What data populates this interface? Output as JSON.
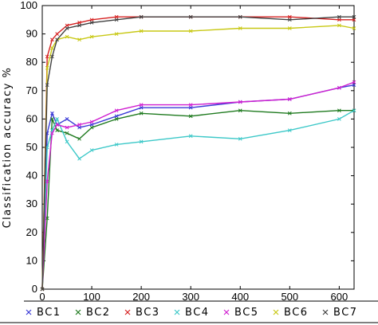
{
  "chart_data": {
    "type": "line",
    "title": "",
    "xlabel": "",
    "ylabel": "Classification accuracy %",
    "xlim": [
      0,
      630
    ],
    "ylim": [
      0,
      100
    ],
    "xticks": [
      0,
      100,
      200,
      300,
      400,
      500,
      600
    ],
    "yticks": [
      0,
      10,
      20,
      30,
      40,
      50,
      60,
      70,
      80,
      90,
      100
    ],
    "grid": false,
    "legend_position": "bottom",
    "series": [
      {
        "name": "BC1",
        "color": "#3b3bd6",
        "marker": "x",
        "x": [
          0,
          10,
          20,
          30,
          50,
          75,
          100,
          150,
          200,
          300,
          400,
          500,
          600,
          630
        ],
        "y": [
          0,
          55,
          62,
          58,
          60,
          57,
          58,
          61,
          64,
          64,
          66,
          67,
          71,
          72
        ]
      },
      {
        "name": "BC2",
        "color": "#1f7a1f",
        "marker": "x",
        "x": [
          0,
          10,
          20,
          30,
          50,
          75,
          100,
          150,
          200,
          300,
          400,
          500,
          600,
          630
        ],
        "y": [
          0,
          25,
          60,
          56,
          55,
          53,
          57,
          60,
          62,
          61,
          63,
          62,
          63,
          63
        ]
      },
      {
        "name": "BC3",
        "color": "#d62020",
        "marker": "x",
        "x": [
          0,
          10,
          20,
          30,
          50,
          75,
          100,
          150,
          200,
          300,
          400,
          500,
          600,
          630
        ],
        "y": [
          0,
          82,
          88,
          90,
          93,
          94,
          95,
          96,
          96,
          96,
          96,
          96,
          95,
          95
        ]
      },
      {
        "name": "BC4",
        "color": "#3cc8c8",
        "marker": "x",
        "x": [
          0,
          10,
          20,
          30,
          50,
          75,
          100,
          150,
          200,
          300,
          400,
          500,
          600,
          630
        ],
        "y": [
          0,
          50,
          56,
          60,
          52,
          46,
          49,
          51,
          52,
          54,
          53,
          56,
          60,
          63
        ]
      },
      {
        "name": "BC5",
        "color": "#d01fd0",
        "marker": "x",
        "x": [
          0,
          10,
          20,
          30,
          50,
          75,
          100,
          150,
          200,
          300,
          400,
          500,
          600,
          630
        ],
        "y": [
          0,
          38,
          55,
          58,
          57,
          58,
          59,
          63,
          65,
          65,
          66,
          67,
          71,
          73
        ]
      },
      {
        "name": "BC6",
        "color": "#c8c814",
        "marker": "x",
        "x": [
          0,
          10,
          20,
          30,
          50,
          75,
          100,
          150,
          200,
          300,
          400,
          500,
          600,
          630
        ],
        "y": [
          0,
          78,
          85,
          88,
          89,
          88,
          89,
          90,
          91,
          91,
          92,
          92,
          93,
          92
        ]
      },
      {
        "name": "BC7",
        "color": "#404040",
        "marker": "x",
        "x": [
          0,
          10,
          20,
          30,
          50,
          75,
          100,
          150,
          200,
          300,
          400,
          500,
          600,
          630
        ],
        "y": [
          0,
          72,
          82,
          88,
          92,
          93,
          94,
          95,
          96,
          96,
          96,
          95,
          96,
          96
        ]
      }
    ]
  }
}
